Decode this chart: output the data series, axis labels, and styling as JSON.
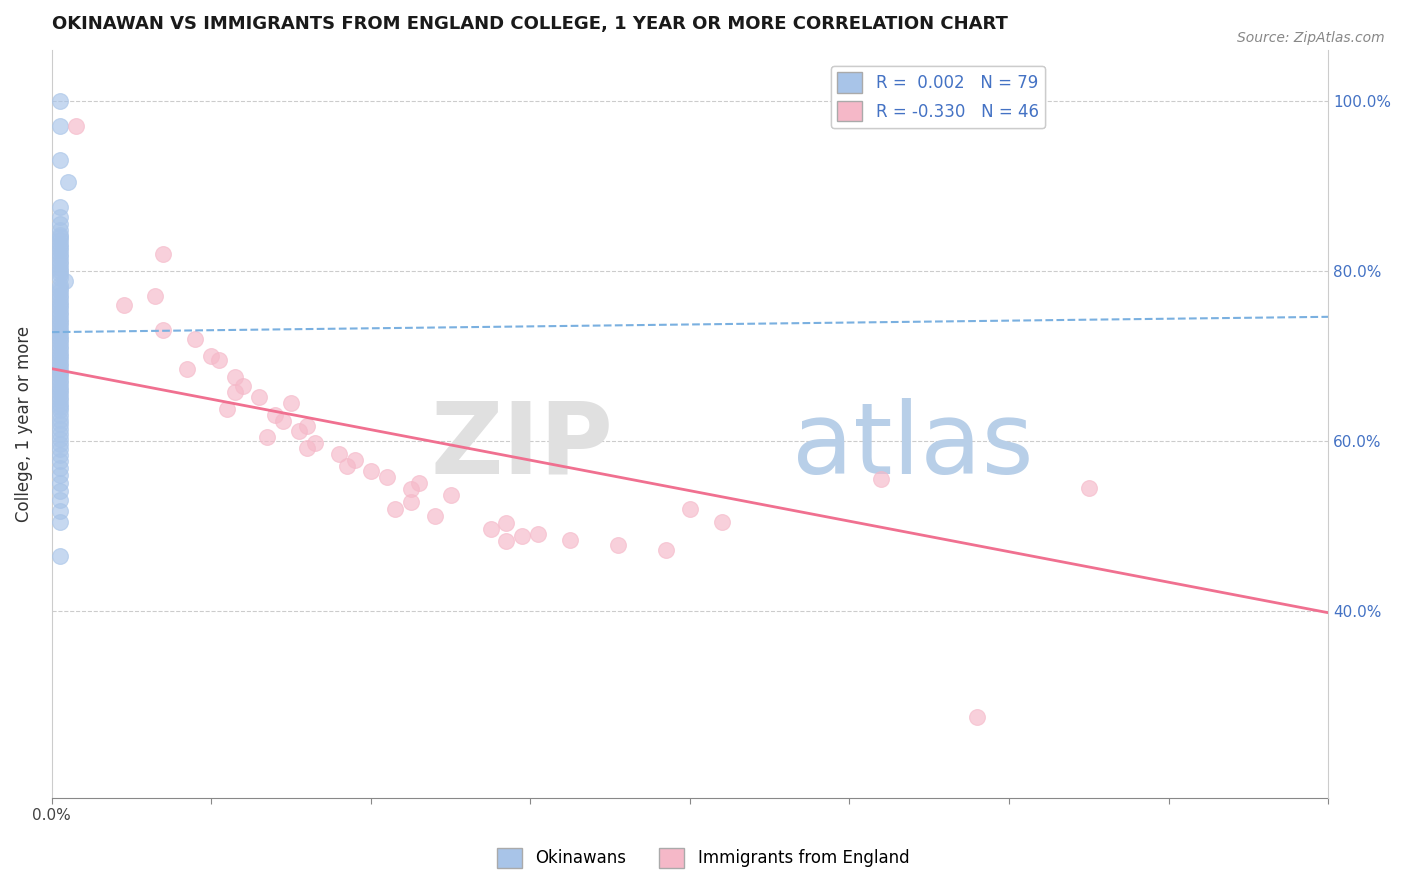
{
  "title": "OKINAWAN VS IMMIGRANTS FROM ENGLAND COLLEGE, 1 YEAR OR MORE CORRELATION CHART",
  "source": "Source: ZipAtlas.com",
  "ylabel": "College, 1 year or more",
  "xlim": [
    0.0,
    0.8
  ],
  "ylim": [
    0.18,
    1.06
  ],
  "yticks": [
    0.4,
    0.6,
    0.8,
    1.0
  ],
  "right_yticklabels": [
    "40.0%",
    "60.0%",
    "80.0%",
    "100.0%"
  ],
  "xticks_major": [
    0.0,
    0.1,
    0.2,
    0.3,
    0.4,
    0.5,
    0.6,
    0.7,
    0.8
  ],
  "xticklabels_sparse": {
    "0.0": "0.0%",
    "0.80": "80.0%"
  },
  "legend_R1": "0.002",
  "legend_N1": "79",
  "legend_R2": "-0.330",
  "legend_N2": "46",
  "color_blue": "#a8c4e8",
  "color_pink": "#f5b8c8",
  "line_blue_color": "#7ab0e0",
  "line_pink_color": "#f07090",
  "background_color": "#ffffff",
  "grid_color": "#cccccc",
  "blue_scatter_x": [
    0.005,
    0.005,
    0.005,
    0.01,
    0.005,
    0.005,
    0.005,
    0.005,
    0.005,
    0.005,
    0.005,
    0.005,
    0.005,
    0.005,
    0.005,
    0.005,
    0.005,
    0.005,
    0.005,
    0.005,
    0.005,
    0.005,
    0.008,
    0.005,
    0.005,
    0.005,
    0.005,
    0.005,
    0.005,
    0.005,
    0.005,
    0.005,
    0.005,
    0.005,
    0.005,
    0.005,
    0.005,
    0.005,
    0.005,
    0.005,
    0.005,
    0.005,
    0.005,
    0.005,
    0.005,
    0.005,
    0.005,
    0.005,
    0.005,
    0.005,
    0.005,
    0.005,
    0.005,
    0.005,
    0.005,
    0.005,
    0.005,
    0.005,
    0.005,
    0.005,
    0.005,
    0.005,
    0.005,
    0.005,
    0.005,
    0.005,
    0.005,
    0.005,
    0.005,
    0.005,
    0.005,
    0.005,
    0.005,
    0.005,
    0.005,
    0.005,
    0.005,
    0.005,
    0.005
  ],
  "blue_scatter_y": [
    1.0,
    0.97,
    0.93,
    0.905,
    0.875,
    0.863,
    0.855,
    0.848,
    0.842,
    0.836,
    0.84,
    0.832,
    0.828,
    0.824,
    0.82,
    0.816,
    0.812,
    0.808,
    0.804,
    0.8,
    0.796,
    0.792,
    0.788,
    0.784,
    0.78,
    0.776,
    0.772,
    0.768,
    0.764,
    0.76,
    0.756,
    0.752,
    0.748,
    0.744,
    0.74,
    0.736,
    0.732,
    0.728,
    0.724,
    0.72,
    0.716,
    0.712,
    0.708,
    0.704,
    0.7,
    0.696,
    0.692,
    0.688,
    0.684,
    0.68,
    0.676,
    0.672,
    0.668,
    0.664,
    0.66,
    0.656,
    0.652,
    0.648,
    0.644,
    0.64,
    0.636,
    0.63,
    0.625,
    0.62,
    0.614,
    0.608,
    0.602,
    0.596,
    0.59,
    0.584,
    0.576,
    0.568,
    0.56,
    0.551,
    0.541,
    0.53,
    0.518,
    0.505,
    0.465
  ],
  "pink_scatter_x": [
    0.015,
    0.07,
    0.065,
    0.045,
    0.07,
    0.09,
    0.1,
    0.105,
    0.085,
    0.115,
    0.12,
    0.115,
    0.13,
    0.15,
    0.11,
    0.14,
    0.145,
    0.16,
    0.155,
    0.135,
    0.165,
    0.16,
    0.18,
    0.19,
    0.185,
    0.2,
    0.21,
    0.23,
    0.225,
    0.25,
    0.225,
    0.215,
    0.24,
    0.285,
    0.275,
    0.295,
    0.305,
    0.285,
    0.325,
    0.355,
    0.385,
    0.4,
    0.42,
    0.52,
    0.58,
    0.65
  ],
  "pink_scatter_y": [
    0.97,
    0.82,
    0.77,
    0.76,
    0.73,
    0.72,
    0.7,
    0.695,
    0.685,
    0.675,
    0.665,
    0.658,
    0.652,
    0.645,
    0.638,
    0.63,
    0.624,
    0.618,
    0.612,
    0.605,
    0.598,
    0.592,
    0.585,
    0.578,
    0.571,
    0.565,
    0.558,
    0.551,
    0.543,
    0.536,
    0.528,
    0.52,
    0.512,
    0.504,
    0.496,
    0.488,
    0.49,
    0.482,
    0.484,
    0.478,
    0.472,
    0.52,
    0.505,
    0.555,
    0.275,
    0.545
  ],
  "blue_line_x": [
    0.0,
    0.8
  ],
  "blue_line_y": [
    0.728,
    0.746
  ],
  "pink_line_x": [
    0.0,
    0.8
  ],
  "pink_line_y": [
    0.685,
    0.398
  ]
}
